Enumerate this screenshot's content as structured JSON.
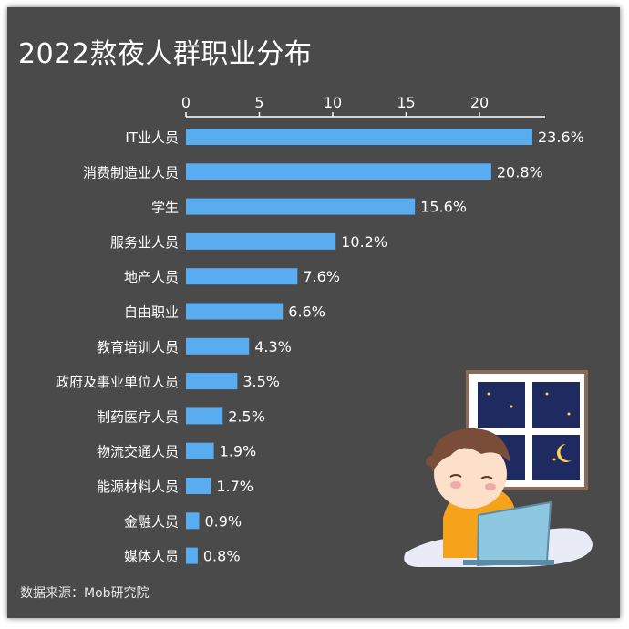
{
  "title": "2022熬夜人群职业分布",
  "source": "数据来源：Mob研究院",
  "colors": {
    "background": "#4a4a4a",
    "bar": "#5aacf0",
    "text": "#ffffff",
    "axis": "#ffffff"
  },
  "chart_data": {
    "type": "bar",
    "orientation": "horizontal",
    "title": "2022熬夜人群职业分布",
    "xlim": [
      0,
      25
    ],
    "xticks": [
      "0",
      "5",
      "10",
      "15",
      "20"
    ],
    "categories": [
      "IT业人员",
      "消费制造业人员",
      "学生",
      "服务业人员",
      "地产人员",
      "自由职业",
      "教育培训人员",
      "政府及事业单位人员",
      "制药医疗人员",
      "物流交通人员",
      "能源材料人员",
      "金融人员",
      "媒体人员"
    ],
    "values": [
      23.6,
      20.8,
      15.6,
      10.2,
      7.6,
      6.6,
      4.3,
      3.5,
      2.5,
      1.9,
      1.7,
      0.9,
      0.8
    ],
    "labels": [
      "23.6%",
      "20.8%",
      "15.6%",
      "10.2%",
      "7.6%",
      "6.6%",
      "4.3%",
      "3.5%",
      "2.5%",
      "1.9%",
      "1.7%",
      "0.9%",
      "0.8%"
    ],
    "grid": false,
    "legend": "none",
    "axis_position": "top"
  },
  "illustration": {
    "icon": "person-at-laptop-night-window-illustration"
  }
}
